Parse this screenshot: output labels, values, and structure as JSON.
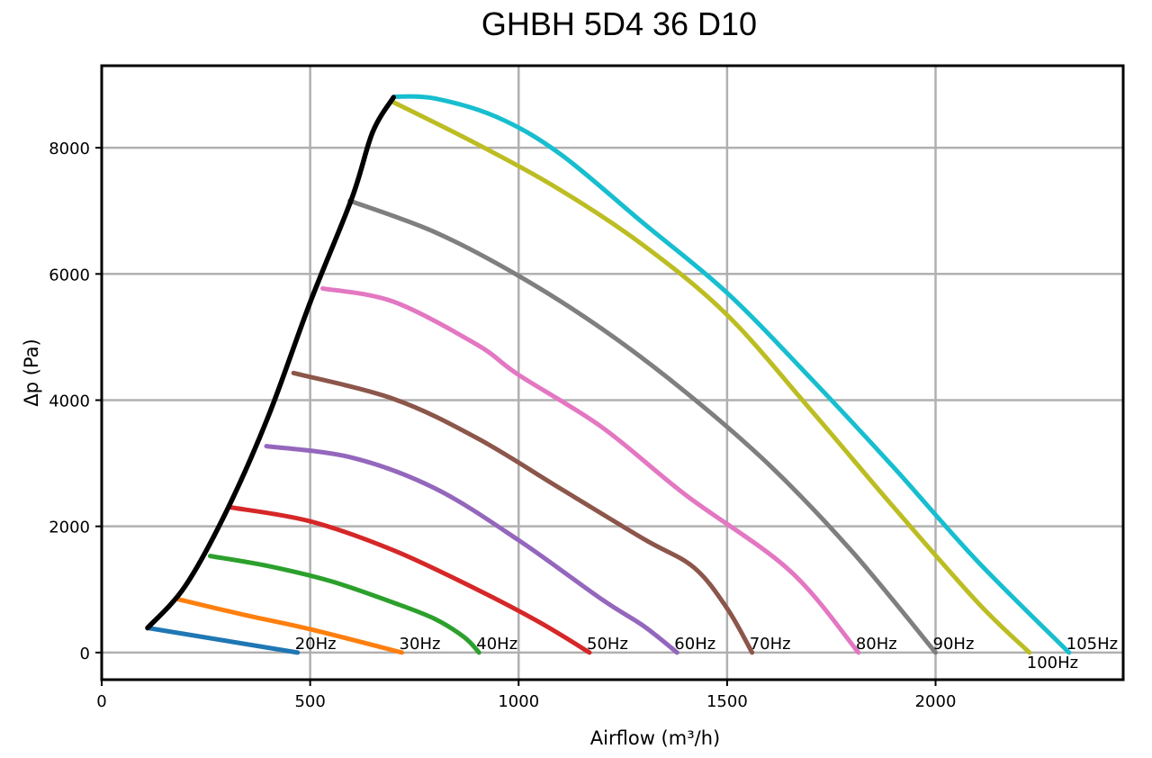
{
  "chart_data": {
    "type": "line",
    "title": "GHBH 5D4 36 D10",
    "xlabel": "Airflow  (m³/h)",
    "ylabel": "Δp (Pa)",
    "xlim": [
      0,
      2450
    ],
    "ylim": [
      -430,
      9300
    ],
    "xticks": [
      0,
      500,
      1000,
      1500,
      2000
    ],
    "yticks": [
      0,
      2000,
      4000,
      6000,
      8000
    ],
    "grid": true,
    "series": [
      {
        "name": "20Hz",
        "color": "#1f77b4",
        "x": [
          110,
          470
        ],
        "y": [
          390,
          0
        ]
      },
      {
        "name": "30Hz",
        "color": "#ff7f0e",
        "x": [
          180,
          340,
          500,
          720
        ],
        "y": [
          850,
          600,
          370,
          0
        ]
      },
      {
        "name": "40Hz",
        "color": "#2ca02c",
        "x": [
          260,
          400,
          550,
          700,
          800,
          870,
          905
        ],
        "y": [
          1530,
          1370,
          1130,
          790,
          530,
          240,
          0
        ]
      },
      {
        "name": "50Hz",
        "color": "#d62728",
        "x": [
          310,
          500,
          700,
          900,
          1050,
          1170
        ],
        "y": [
          2300,
          2080,
          1620,
          1000,
          480,
          0
        ]
      },
      {
        "name": "60Hz",
        "color": "#9467bd",
        "x": [
          395,
          600,
          800,
          1000,
          1200,
          1300,
          1380
        ],
        "y": [
          3270,
          3090,
          2600,
          1780,
          840,
          420,
          0
        ]
      },
      {
        "name": "70Hz",
        "color": "#8c564b",
        "x": [
          460,
          700,
          900,
          1100,
          1300,
          1420,
          1500,
          1560
        ],
        "y": [
          4430,
          4020,
          3400,
          2600,
          1800,
          1350,
          700,
          0
        ]
      },
      {
        "name": "80Hz",
        "color": "#e377c2",
        "x": [
          530,
          700,
          900,
          1000,
          1200,
          1400,
          1650,
          1815
        ],
        "y": [
          5770,
          5560,
          4880,
          4400,
          3570,
          2500,
          1300,
          0
        ]
      },
      {
        "name": "90Hz",
        "color": "#7f7f7f",
        "x": [
          595,
          800,
          1000,
          1200,
          1400,
          1600,
          1800,
          2000
        ],
        "y": [
          7160,
          6660,
          5970,
          5130,
          4130,
          2980,
          1600,
          0
        ]
      },
      {
        "name": "100Hz",
        "color": "#bcbd22",
        "x": [
          700,
          900,
          1100,
          1300,
          1500,
          1700,
          1900,
          2100,
          2225
        ],
        "y": [
          8720,
          8060,
          7330,
          6450,
          5350,
          3850,
          2300,
          800,
          0
        ]
      },
      {
        "name": "105Hz",
        "color": "#17becf",
        "x": [
          705,
          800,
          950,
          1100,
          1300,
          1500,
          1700,
          1900,
          2100,
          2320
        ],
        "y": [
          8810,
          8780,
          8480,
          7900,
          6800,
          5700,
          4350,
          2930,
          1450,
          0
        ]
      },
      {
        "name": "",
        "color": "#000000",
        "x": [
          110,
          200,
          300,
          400,
          500,
          600,
          650,
          700
        ],
        "y": [
          390,
          1050,
          2250,
          3750,
          5550,
          7200,
          8250,
          8800
        ]
      }
    ]
  }
}
